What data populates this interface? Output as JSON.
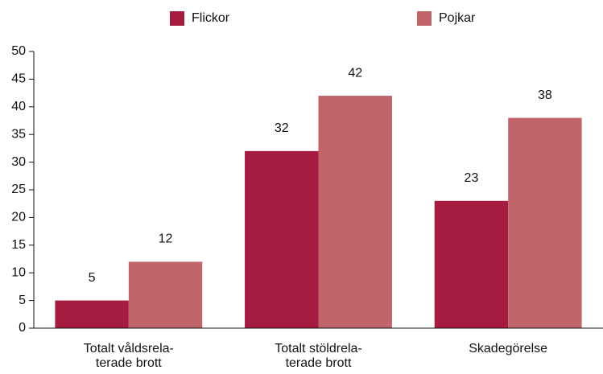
{
  "chart_data": {
    "type": "bar",
    "categories": [
      "Totalt våldsrela-\nterade brott",
      "Totalt stöldrela-\nterade brott",
      "Skadegörelse"
    ],
    "series": [
      {
        "name": "Flickor",
        "color": "#a51c40",
        "values": [
          5,
          32,
          23
        ]
      },
      {
        "name": "Pojkar",
        "color": "#c0666a",
        "values": [
          12,
          42,
          38
        ]
      }
    ],
    "ylim": [
      0,
      50
    ],
    "yticks": [
      0,
      5,
      10,
      15,
      20,
      25,
      30,
      35,
      40,
      45,
      50
    ],
    "grid": false,
    "legend": "top"
  }
}
